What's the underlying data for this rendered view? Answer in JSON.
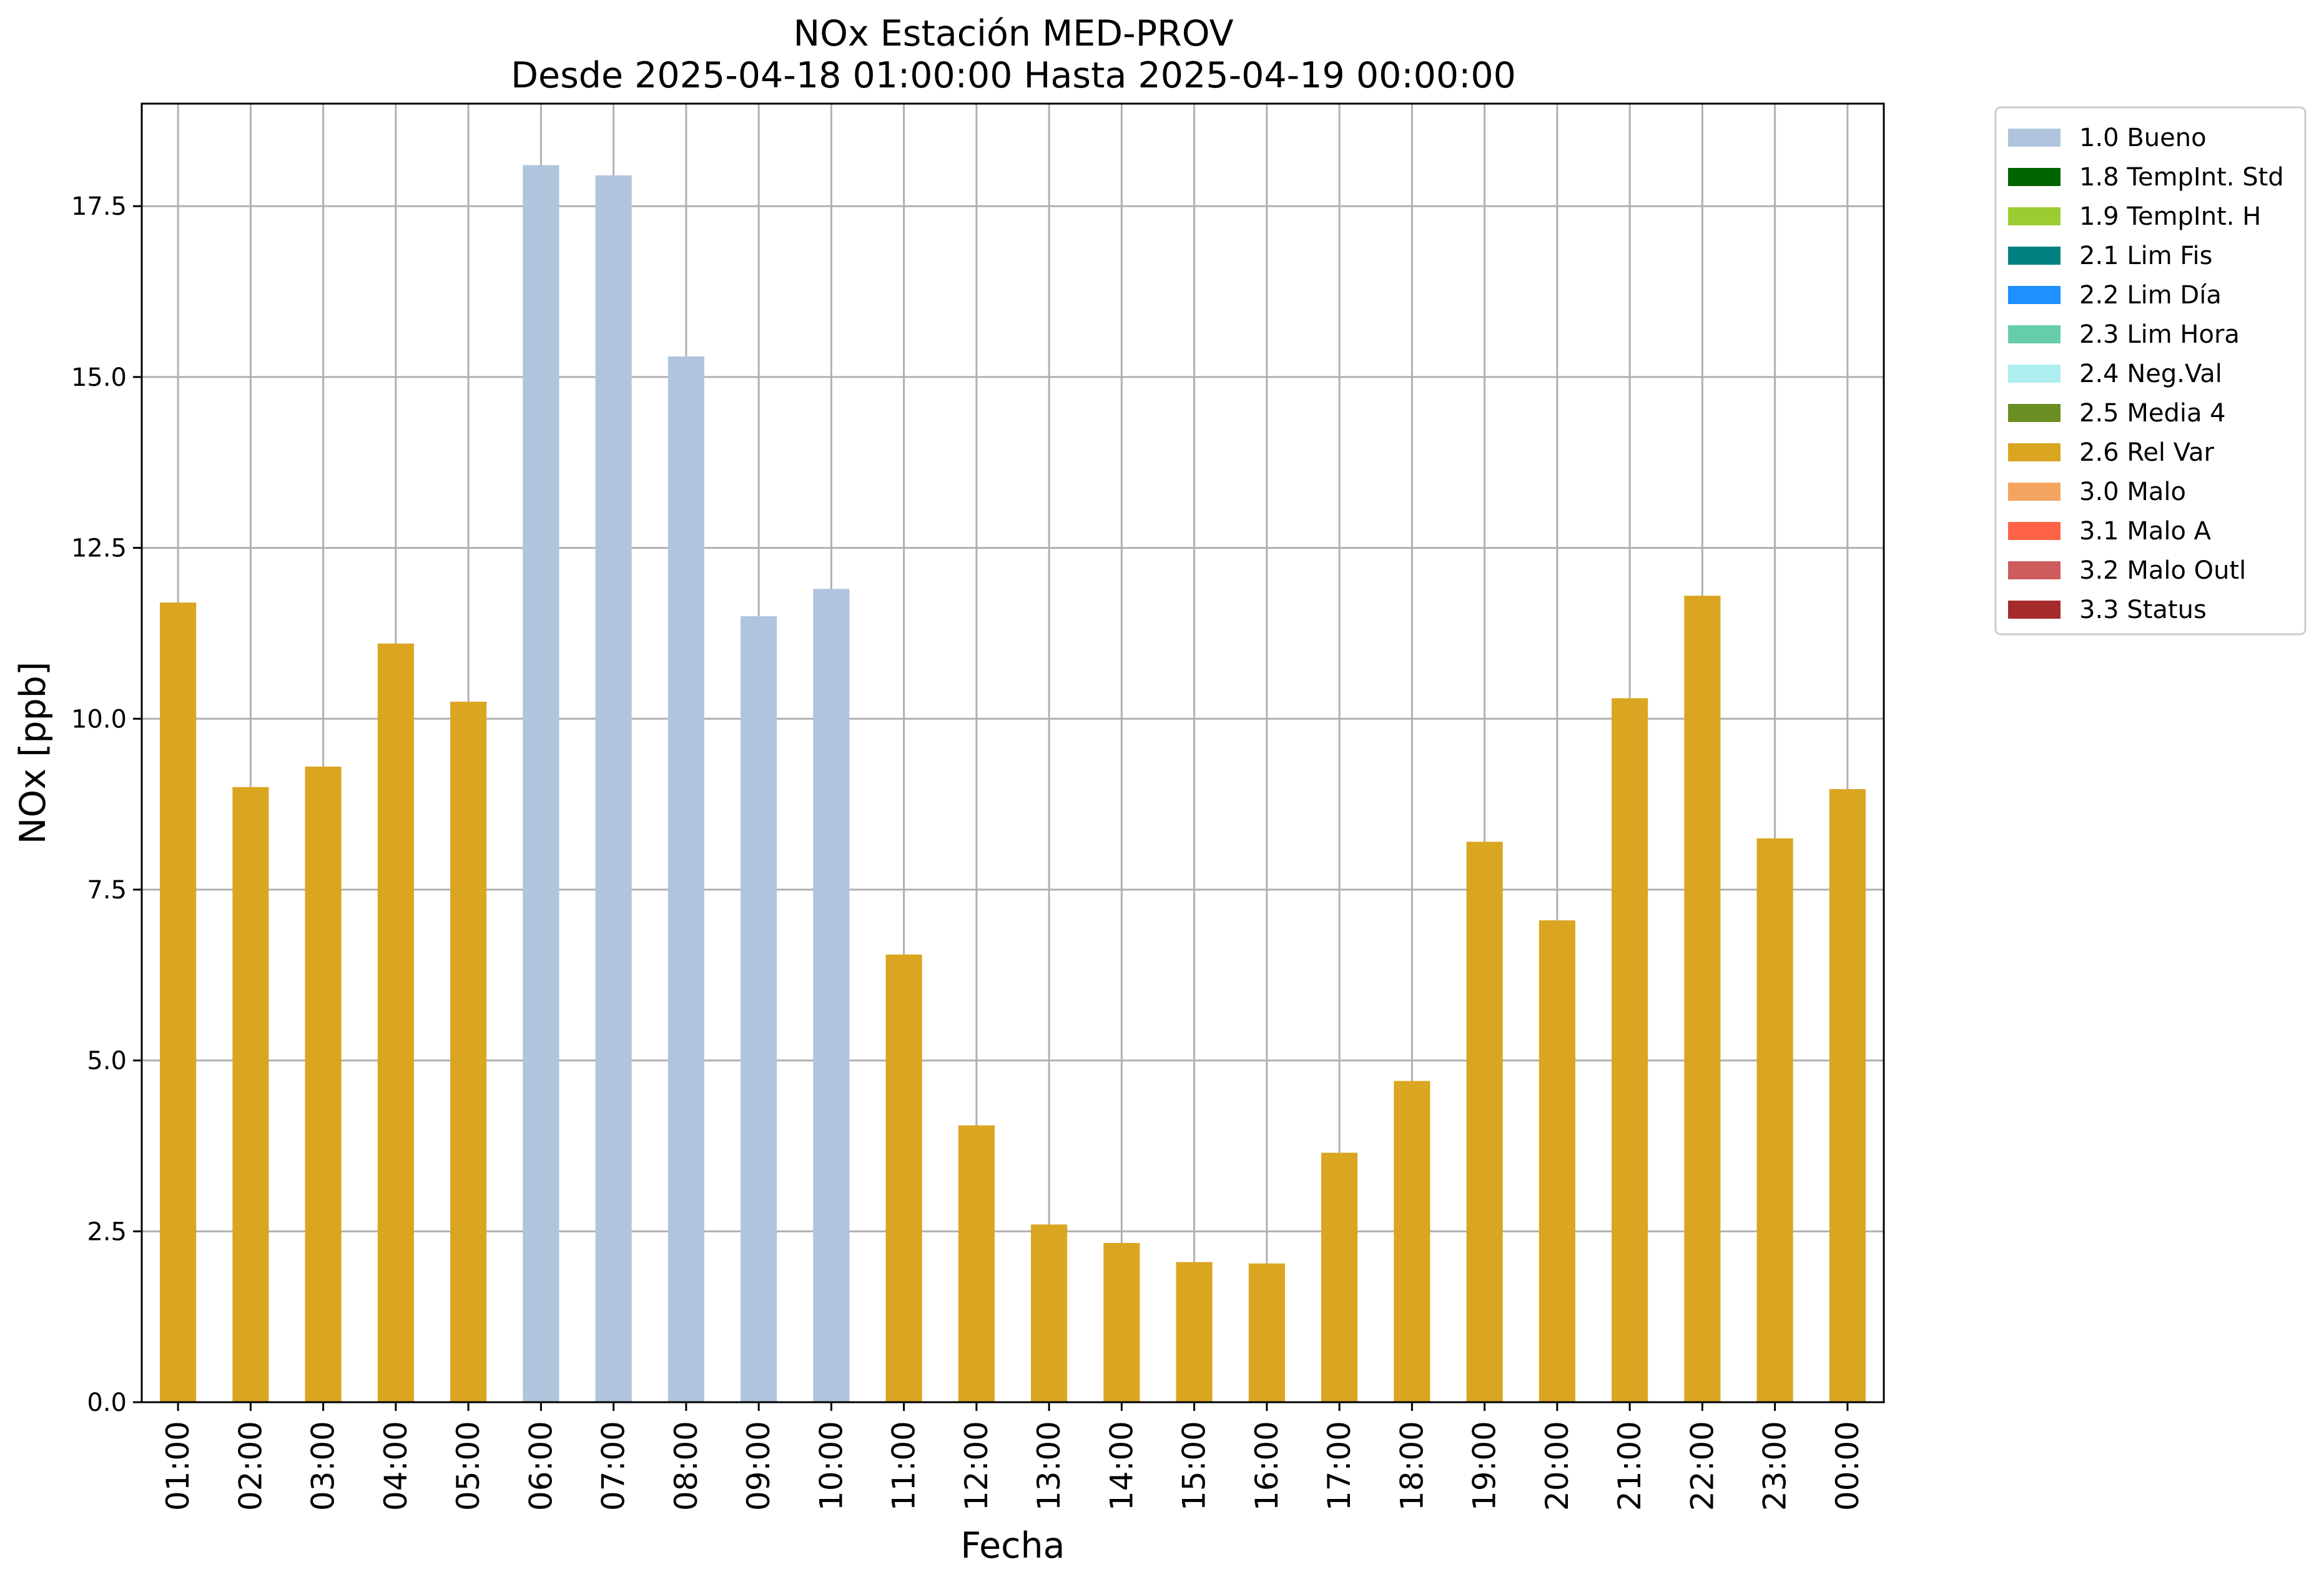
{
  "chart_data": {
    "type": "bar",
    "title": "NOx Estación MED-PROV",
    "subtitle": "Desde 2025-04-18 01:00:00 Hasta 2025-04-19 00:00:00",
    "xlabel": "Fecha",
    "ylabel": "NOx [ppb]",
    "ylim": [
      0,
      19
    ],
    "yticks": [
      0.0,
      2.5,
      5.0,
      7.5,
      10.0,
      12.5,
      15.0,
      17.5
    ],
    "ytick_labels": [
      "0.0",
      "2.5",
      "5.0",
      "7.5",
      "10.0",
      "12.5",
      "15.0",
      "17.5"
    ],
    "grid": true,
    "legend_position": "outside-top-right",
    "categories": [
      "01:00",
      "02:00",
      "03:00",
      "04:00",
      "05:00",
      "06:00",
      "07:00",
      "08:00",
      "09:00",
      "10:00",
      "11:00",
      "12:00",
      "13:00",
      "14:00",
      "15:00",
      "16:00",
      "17:00",
      "18:00",
      "19:00",
      "20:00",
      "21:00",
      "22:00",
      "23:00",
      "00:00"
    ],
    "values": [
      11.7,
      9.0,
      9.3,
      11.1,
      10.25,
      18.1,
      17.95,
      15.3,
      11.5,
      11.9,
      6.55,
      4.05,
      2.6,
      2.33,
      2.05,
      2.03,
      3.65,
      4.7,
      8.2,
      7.05,
      10.3,
      11.8,
      8.25,
      8.97
    ],
    "flags": [
      "2.6 Rel Var",
      "2.6 Rel Var",
      "2.6 Rel Var",
      "2.6 Rel Var",
      "2.6 Rel Var",
      "1.0 Bueno",
      "1.0 Bueno",
      "1.0 Bueno",
      "1.0 Bueno",
      "1.0 Bueno",
      "2.6 Rel Var",
      "2.6 Rel Var",
      "2.6 Rel Var",
      "2.6 Rel Var",
      "2.6 Rel Var",
      "2.6 Rel Var",
      "2.6 Rel Var",
      "2.6 Rel Var",
      "2.6 Rel Var",
      "2.6 Rel Var",
      "2.6 Rel Var",
      "2.6 Rel Var",
      "2.6 Rel Var",
      "2.6 Rel Var"
    ],
    "legend": [
      {
        "label": "1.0 Bueno",
        "color": "#b0c4de"
      },
      {
        "label": "1.8 TempInt. Std",
        "color": "#006400"
      },
      {
        "label": "1.9 TempInt. H",
        "color": "#9acd32"
      },
      {
        "label": "2.1 Lim Fis",
        "color": "#008080"
      },
      {
        "label": "2.2 Lim Día",
        "color": "#1e90ff"
      },
      {
        "label": "2.3 Lim Hora",
        "color": "#66cdaa"
      },
      {
        "label": "2.4 Neg.Val",
        "color": "#afeeee"
      },
      {
        "label": "2.5 Media 4",
        "color": "#6b8e23"
      },
      {
        "label": "2.6 Rel Var",
        "color": "#daa520"
      },
      {
        "label": "3.0 Malo",
        "color": "#f4a460"
      },
      {
        "label": "3.1 Malo A",
        "color": "#ff6347"
      },
      {
        "label": "3.2 Malo Outl",
        "color": "#cd5c5c"
      },
      {
        "label": "3.3 Status",
        "color": "#a52a2a"
      }
    ]
  }
}
